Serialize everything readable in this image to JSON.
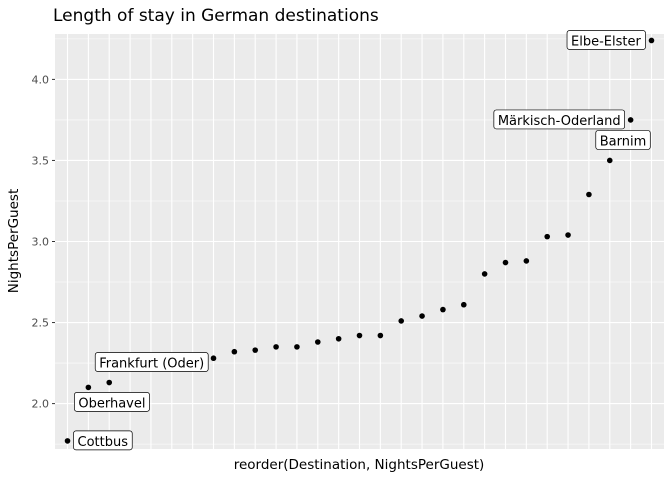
{
  "chart_data": {
    "type": "scatter",
    "title": "Length of stay in German destinations",
    "xlabel": "reorder(Destination, NightsPerGuest)",
    "ylabel": "NightsPerGuest",
    "ylim": [
      1.72,
      4.28
    ],
    "yticks": [
      2.0,
      2.5,
      3.0,
      3.5,
      4.0
    ],
    "ytick_labels": [
      "2.0",
      "2.5",
      "3.0",
      "3.5",
      "4.0"
    ],
    "x_tick_labels_shown": false,
    "grid": true,
    "values": [
      1.77,
      2.1,
      2.13,
      2.24,
      2.25,
      2.26,
      2.27,
      2.28,
      2.32,
      2.33,
      2.35,
      2.35,
      2.38,
      2.4,
      2.42,
      2.42,
      2.51,
      2.54,
      2.58,
      2.61,
      2.8,
      2.87,
      2.88,
      3.03,
      3.04,
      3.29,
      3.5,
      3.75,
      4.24
    ],
    "labels": [
      {
        "index": 0,
        "text": "Cottbus",
        "side": "right"
      },
      {
        "index": 1,
        "text": "Oberhavel",
        "side": "below"
      },
      {
        "index": 2,
        "text": "Frankfurt (Oder)",
        "side": "above"
      },
      {
        "index": 26,
        "text": "Barnim",
        "side": "above"
      },
      {
        "index": 27,
        "text": "Märkisch-Oderland",
        "side": "left"
      },
      {
        "index": 28,
        "text": "Elbe-Elster",
        "side": "left"
      }
    ],
    "colors": {
      "panel": "#ebebeb",
      "grid_major": "#ffffff",
      "point": "#000000",
      "label_fill": "#ffffff",
      "label_border": "#000000"
    }
  }
}
